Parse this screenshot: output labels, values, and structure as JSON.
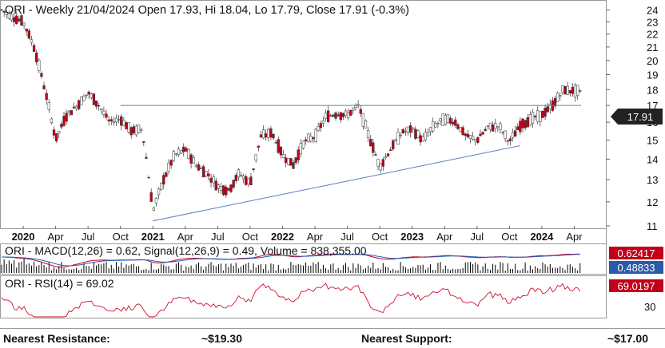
{
  "price_panel": {
    "header": "ORI - Weekly 21/04/2024 Open 17.93, Hi 18.04, Lo 17.79, Close 17.91 (-0.3%)",
    "last_price_label": "17.91",
    "y_ticks": [
      "11",
      "12",
      "13",
      "14",
      "15",
      "16",
      "17",
      "18",
      "19",
      "20",
      "21",
      "22",
      "23",
      "24"
    ],
    "x_ticks": [
      {
        "label": "2020",
        "bold": true
      },
      {
        "label": "Apr",
        "bold": false
      },
      {
        "label": "Jul",
        "bold": false
      },
      {
        "label": "Oct",
        "bold": false
      },
      {
        "label": "2021",
        "bold": true
      },
      {
        "label": "Apr",
        "bold": false
      },
      {
        "label": "Jul",
        "bold": false
      },
      {
        "label": "Oct",
        "bold": false
      },
      {
        "label": "2022",
        "bold": true
      },
      {
        "label": "Apr",
        "bold": false
      },
      {
        "label": "Jul",
        "bold": false
      },
      {
        "label": "Oct",
        "bold": false
      },
      {
        "label": "2023",
        "bold": true
      },
      {
        "label": "Apr",
        "bold": false
      },
      {
        "label": "Jul",
        "bold": false
      },
      {
        "label": "Oct",
        "bold": false
      },
      {
        "label": "2024",
        "bold": true
      },
      {
        "label": "Apr",
        "bold": false
      }
    ]
  },
  "macd_panel": {
    "header": "ORI - MACD(12,26) = 0.62, Signal(12,26,9) = 0.49, Volume = 838,355.00",
    "macd_label": "0.62417",
    "signal_label": "0.48833"
  },
  "rsi_panel": {
    "header": "ORI - RSI(14) = 69.02",
    "rsi_label": "69.0197",
    "y_tick": "30"
  },
  "footer": {
    "resistance_label": "Nearest Resistance:",
    "resistance_value": "~$19.30",
    "support_label": "Nearest Support:",
    "support_value": "~$17.00"
  },
  "colors": {
    "up_candle": "#ffffff",
    "down_candle": "#c0001a",
    "trendline": "#5b7fbf",
    "macd_line": "#c0001a",
    "signal_line": "#2060c0",
    "rsi_line": "#d01030",
    "volume": "#000000"
  },
  "chart_data": {
    "type": "line",
    "ticker": "ORI",
    "interval": "weekly",
    "x_start": "2019-11",
    "x_end": "2024-05",
    "y_scale": "log",
    "ylim": [
      11,
      24.6
    ],
    "grid": false,
    "price_path": [
      {
        "date": "2019-11",
        "close": 24.0
      },
      {
        "date": "2019-12",
        "close": 23.4
      },
      {
        "date": "2020-01",
        "close": 23.0
      },
      {
        "date": "2020-02",
        "close": 21.0
      },
      {
        "date": "2020-03",
        "close": 18.0
      },
      {
        "date": "2020-04",
        "close": 15.0
      },
      {
        "date": "2020-05",
        "close": 16.4
      },
      {
        "date": "2020-06",
        "close": 17.0
      },
      {
        "date": "2020-07",
        "close": 17.8
      },
      {
        "date": "2020-08",
        "close": 17.0
      },
      {
        "date": "2020-09",
        "close": 16.0
      },
      {
        "date": "2020-10",
        "close": 16.2
      },
      {
        "date": "2020-11",
        "close": 15.5
      },
      {
        "date": "2020-12",
        "close": 15.6
      },
      {
        "date": "2021-01",
        "close": 11.6
      },
      {
        "date": "2021-02",
        "close": 13.0
      },
      {
        "date": "2021-03",
        "close": 14.2
      },
      {
        "date": "2021-04",
        "close": 14.5
      },
      {
        "date": "2021-05",
        "close": 13.7
      },
      {
        "date": "2021-06",
        "close": 13.3
      },
      {
        "date": "2021-07",
        "close": 12.7
      },
      {
        "date": "2021-08",
        "close": 12.5
      },
      {
        "date": "2021-09",
        "close": 13.3
      },
      {
        "date": "2021-10",
        "close": 12.8
      },
      {
        "date": "2021-11",
        "close": 15.2
      },
      {
        "date": "2021-12",
        "close": 15.4
      },
      {
        "date": "2022-01",
        "close": 14.2
      },
      {
        "date": "2022-02",
        "close": 13.7
      },
      {
        "date": "2022-03",
        "close": 14.9
      },
      {
        "date": "2022-04",
        "close": 15.2
      },
      {
        "date": "2022-05",
        "close": 16.3
      },
      {
        "date": "2022-06",
        "close": 16.5
      },
      {
        "date": "2022-07",
        "close": 16.4
      },
      {
        "date": "2022-08",
        "close": 17.0
      },
      {
        "date": "2022-09",
        "close": 15.2
      },
      {
        "date": "2022-10",
        "close": 13.6
      },
      {
        "date": "2022-11",
        "close": 14.5
      },
      {
        "date": "2022-12",
        "close": 15.4
      },
      {
        "date": "2023-01",
        "close": 15.6
      },
      {
        "date": "2023-02",
        "close": 15.0
      },
      {
        "date": "2023-03",
        "close": 15.8
      },
      {
        "date": "2023-04",
        "close": 16.2
      },
      {
        "date": "2023-05",
        "close": 16.0
      },
      {
        "date": "2023-06",
        "close": 15.2
      },
      {
        "date": "2023-07",
        "close": 15.0
      },
      {
        "date": "2023-08",
        "close": 15.7
      },
      {
        "date": "2023-09",
        "close": 15.8
      },
      {
        "date": "2023-10",
        "close": 14.9
      },
      {
        "date": "2023-11",
        "close": 15.8
      },
      {
        "date": "2023-12",
        "close": 16.2
      },
      {
        "date": "2024-01",
        "close": 16.4
      },
      {
        "date": "2024-02",
        "close": 17.0
      },
      {
        "date": "2024-03",
        "close": 18.0
      },
      {
        "date": "2024-04",
        "close": 17.91
      }
    ],
    "resistance_line": {
      "from": "2020-10",
      "to": "2024-05",
      "y": 17.0
    },
    "support_trendline": {
      "from": [
        "2021-01",
        11.2
      ],
      "to": [
        "2023-11",
        14.7
      ]
    },
    "last_close": 17.91,
    "indicators": {
      "macd": 0.62,
      "signal": 0.49,
      "volume": 838355.0,
      "rsi": 69.02
    }
  }
}
